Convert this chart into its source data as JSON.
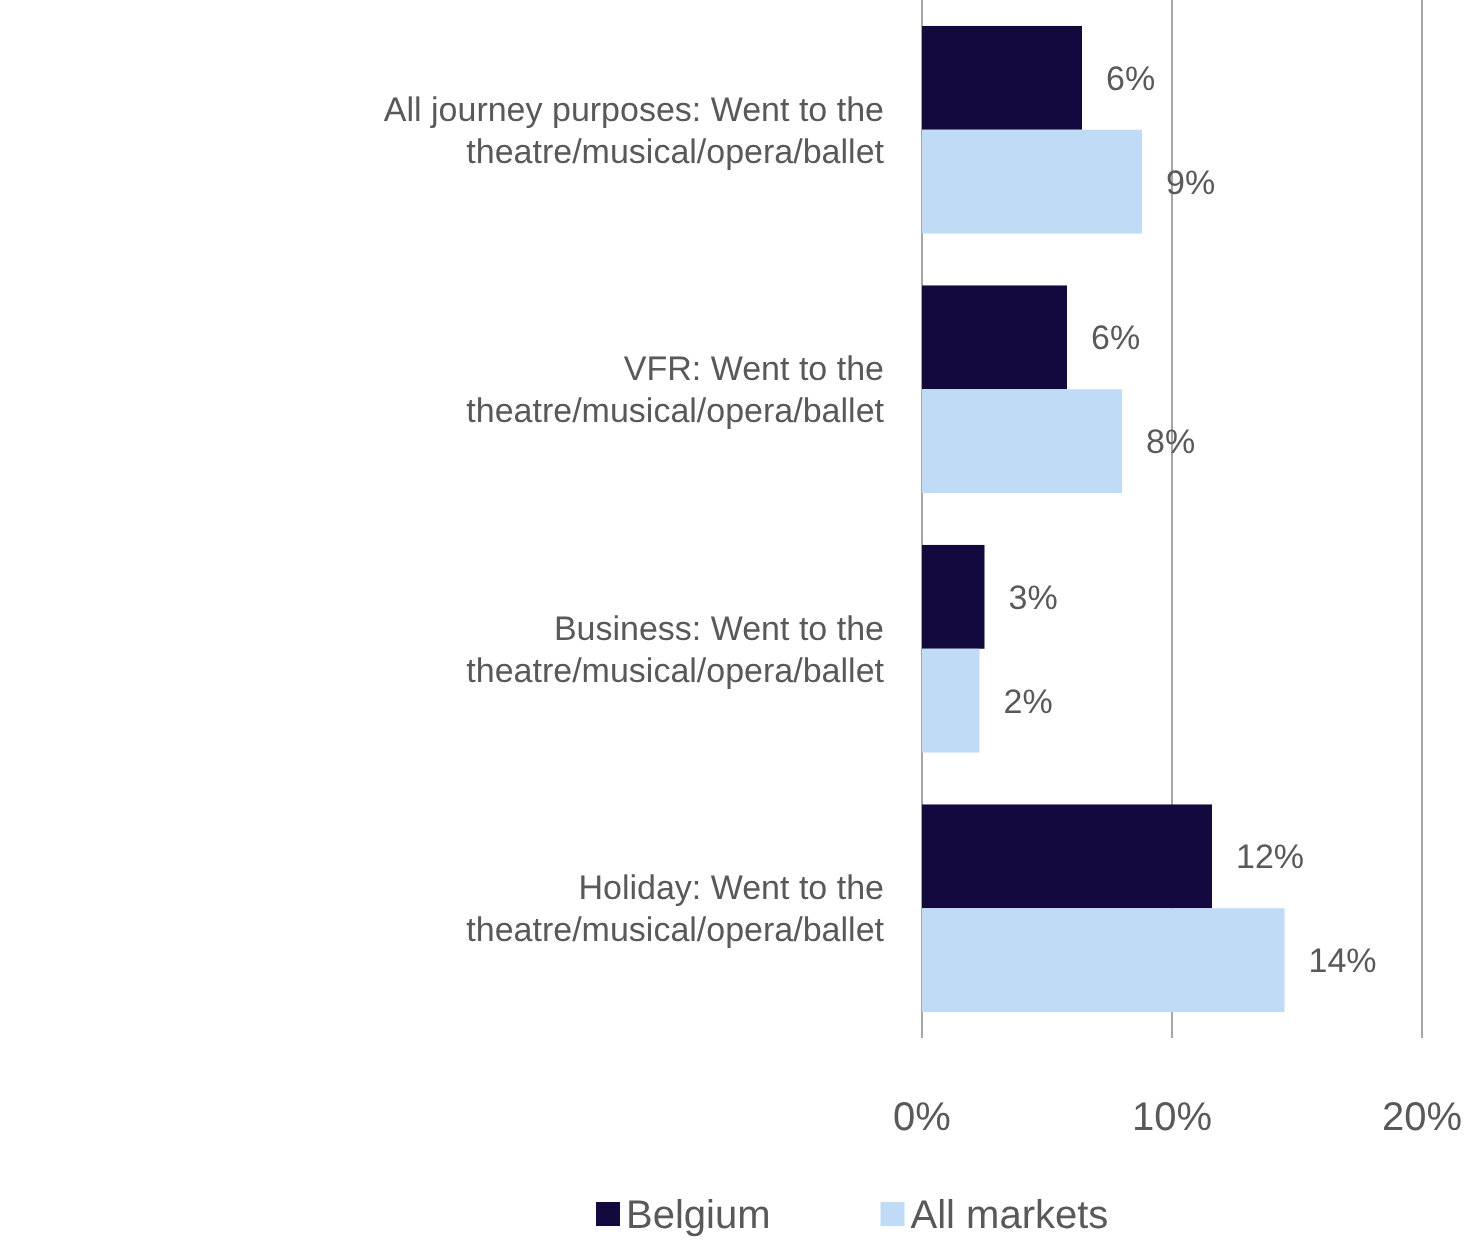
{
  "chart_data": {
    "type": "bar",
    "orientation": "horizontal",
    "categories": [
      "All journey purposes: Went to the theatre/musical/opera/ballet",
      "VFR: Went to the theatre/musical/opera/ballet",
      "Business: Went to the theatre/musical/opera/ballet",
      "Holiday: Went to the theatre/musical/opera/ballet"
    ],
    "series": [
      {
        "name": "Belgium",
        "color": "#13093f",
        "values": [
          6.4,
          5.8,
          2.5,
          11.6
        ],
        "value_labels": [
          "6%",
          "6%",
          "3%",
          "12%"
        ]
      },
      {
        "name": "All markets",
        "color": "#c0dbf5",
        "values": [
          8.8,
          8.0,
          2.3,
          14.5
        ],
        "value_labels": [
          "9%",
          "8%",
          "2%",
          "14%"
        ]
      }
    ],
    "xlim": [
      0,
      20
    ],
    "xticks": [
      {
        "value": 0,
        "label": "0%"
      },
      {
        "value": 10,
        "label": "10%"
      },
      {
        "value": 20,
        "label": "20%"
      }
    ],
    "grid": "x",
    "legend": "bottom"
  }
}
